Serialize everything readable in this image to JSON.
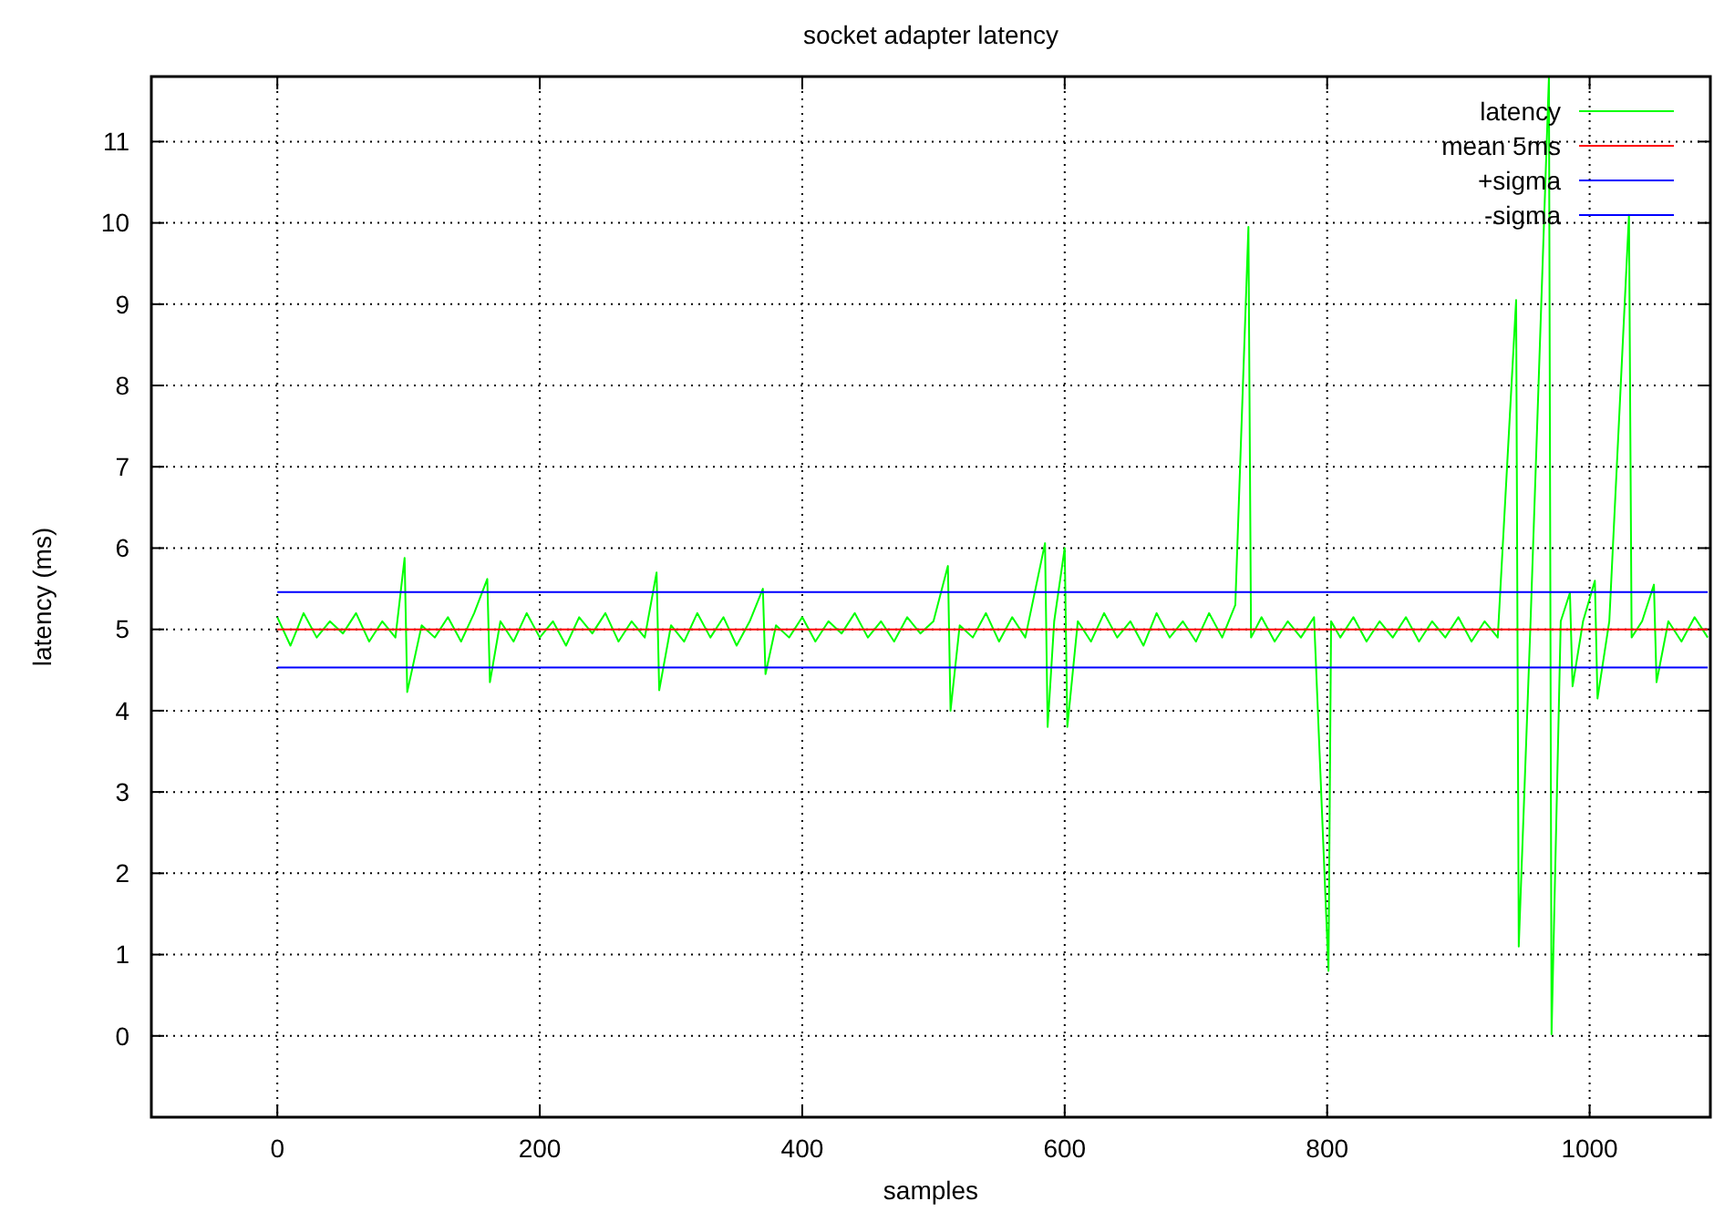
{
  "chart_data": {
    "type": "line",
    "title": "socket adapter latency",
    "xlabel": "samples",
    "ylabel": "latency (ms)",
    "xlim": [
      -96,
      1092
    ],
    "xticks": [
      0,
      200,
      400,
      600,
      800,
      1000
    ],
    "ylim": [
      -1,
      11.8
    ],
    "yticks": [
      0,
      1,
      2,
      3,
      4,
      5,
      6,
      7,
      8,
      9,
      10,
      11
    ],
    "grid": true,
    "legend": "top right",
    "line_style": "solid",
    "series": [
      {
        "name": "latency",
        "color": "#00ff00",
        "x": [
          0,
          10,
          20,
          30,
          40,
          50,
          60,
          70,
          80,
          90,
          97,
          99,
          110,
          120,
          130,
          140,
          150,
          160,
          162,
          170,
          180,
          190,
          200,
          210,
          220,
          230,
          240,
          250,
          260,
          270,
          280,
          289,
          291,
          300,
          310,
          320,
          330,
          340,
          350,
          360,
          370,
          372,
          380,
          390,
          400,
          410,
          420,
          430,
          440,
          450,
          460,
          470,
          480,
          490,
          500,
          511,
          513,
          520,
          530,
          540,
          550,
          560,
          570,
          585,
          587,
          592,
          600,
          602,
          610,
          620,
          630,
          640,
          650,
          660,
          670,
          680,
          690,
          700,
          710,
          720,
          730,
          740,
          742,
          750,
          760,
          770,
          780,
          790,
          801,
          803,
          810,
          820,
          830,
          840,
          850,
          860,
          870,
          880,
          890,
          900,
          910,
          920,
          930,
          944,
          946,
          955,
          969,
          971,
          978,
          985,
          987,
          995,
          1004,
          1006,
          1015,
          1030,
          1032,
          1040,
          1049,
          1051,
          1060,
          1070,
          1080,
          1090
        ],
        "values": [
          5.15,
          4.8,
          5.2,
          4.9,
          5.1,
          4.95,
          5.2,
          4.85,
          5.1,
          4.9,
          5.88,
          4.23,
          5.05,
          4.9,
          5.15,
          4.85,
          5.2,
          5.62,
          4.35,
          5.1,
          4.85,
          5.2,
          4.9,
          5.1,
          4.8,
          5.15,
          4.95,
          5.2,
          4.85,
          5.1,
          4.9,
          5.7,
          4.25,
          5.05,
          4.85,
          5.2,
          4.9,
          5.15,
          4.8,
          5.1,
          5.5,
          4.45,
          5.05,
          4.9,
          5.15,
          4.85,
          5.1,
          4.95,
          5.2,
          4.9,
          5.1,
          4.85,
          5.15,
          4.95,
          5.1,
          5.78,
          4.0,
          5.05,
          4.9,
          5.2,
          4.85,
          5.15,
          4.9,
          6.06,
          3.8,
          5.1,
          6.0,
          3.8,
          5.1,
          4.85,
          5.2,
          4.9,
          5.1,
          4.8,
          5.2,
          4.9,
          5.1,
          4.85,
          5.2,
          4.9,
          5.3,
          9.95,
          4.9,
          5.15,
          4.85,
          5.1,
          4.9,
          5.15,
          0.8,
          5.1,
          4.9,
          5.15,
          4.85,
          5.1,
          4.9,
          5.15,
          4.85,
          5.1,
          4.9,
          5.15,
          4.85,
          5.1,
          4.9,
          9.05,
          1.1,
          5.1,
          11.8,
          0.02,
          5.1,
          5.45,
          4.3,
          5.1,
          5.6,
          4.15,
          5.1,
          10.1,
          4.9,
          5.1,
          5.55,
          4.35,
          5.1,
          4.85,
          5.15,
          4.9
        ]
      },
      {
        "name": "mean 5ms",
        "color": "#ff0000",
        "x": [
          0,
          1090
        ],
        "values": [
          5,
          5
        ]
      },
      {
        "name": "+sigma",
        "color": "#0000ff",
        "x": [
          0,
          1090
        ],
        "values": [
          5.46,
          5.46
        ]
      },
      {
        "name": "-sigma",
        "color": "#0000ff",
        "x": [
          0,
          1090
        ],
        "values": [
          4.53,
          4.53
        ]
      }
    ]
  }
}
